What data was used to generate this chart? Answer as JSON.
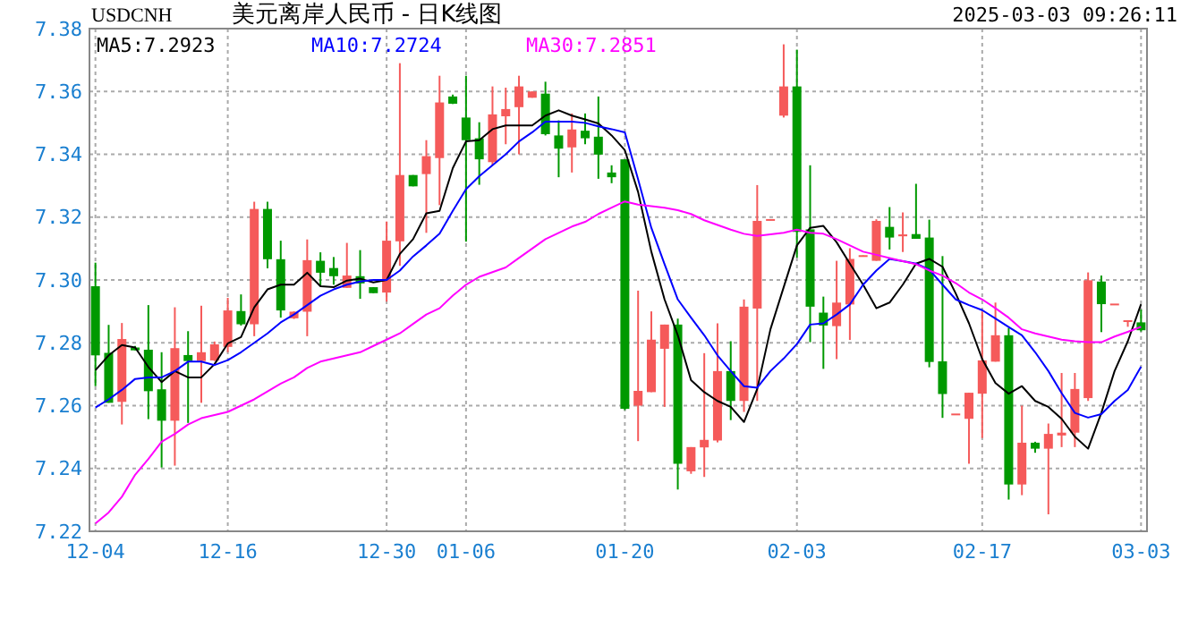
{
  "chart_data": {
    "type": "candlestick",
    "title": "美元离岸人民币 - 日K线图",
    "subtitle": "USDCNH",
    "annotations": [
      "2025-03-03 09:26:11"
    ],
    "categories": [
      "12-04",
      null,
      null,
      null,
      null,
      null,
      null,
      null,
      null,
      null,
      "12-16",
      null,
      null,
      null,
      null,
      null,
      null,
      null,
      null,
      null,
      null,
      null,
      "12-30",
      null,
      null,
      null,
      null,
      null,
      "01-06",
      null,
      null,
      null,
      null,
      null,
      null,
      null,
      null,
      null,
      null,
      null,
      "01-20",
      null,
      null,
      null,
      null,
      null,
      null,
      null,
      null,
      null,
      null,
      null,
      null,
      "02-03",
      null,
      null,
      null,
      null,
      null,
      null,
      null,
      null,
      null,
      null,
      null,
      null,
      null,
      "02-17",
      null,
      null,
      null,
      null,
      null,
      null,
      null,
      null,
      null,
      null,
      null,
      "03-03"
    ],
    "ohlc": [
      [
        7.298,
        7.3055,
        7.2662,
        7.276
      ],
      [
        7.2768,
        7.2857,
        7.2609,
        7.2609
      ],
      [
        7.2612,
        7.2863,
        7.254,
        7.2812
      ],
      [
        7.2785,
        7.279,
        7.2776,
        7.2776
      ],
      [
        7.2778,
        7.292,
        7.2557,
        7.2646
      ],
      [
        7.2652,
        7.277,
        7.2403,
        7.2552
      ],
      [
        7.2552,
        7.2913,
        7.2409,
        7.2783
      ],
      [
        7.2761,
        7.2837,
        7.2545,
        7.2742
      ],
      [
        7.2742,
        7.2918,
        7.2609,
        7.277
      ],
      [
        7.2744,
        7.2804,
        7.2742,
        7.2795
      ],
      [
        7.2787,
        7.2943,
        7.277,
        7.2903
      ],
      [
        7.2901,
        7.2954,
        7.2855,
        7.2859
      ],
      [
        7.2859,
        7.3249,
        7.2821,
        7.3226
      ],
      [
        7.3226,
        7.3249,
        7.3037,
        7.3066
      ],
      [
        7.3066,
        7.3125,
        7.288,
        7.2903
      ],
      [
        7.2878,
        7.29,
        7.2876,
        7.2899
      ],
      [
        7.2899,
        7.3129,
        7.2821,
        7.3063
      ],
      [
        7.3061,
        7.3088,
        7.2983,
        7.3023
      ],
      [
        7.3038,
        7.3073,
        7.2985,
        7.3012
      ],
      [
        7.2975,
        7.3118,
        7.2975,
        7.3014
      ],
      [
        7.3012,
        7.3095,
        7.294,
        7.2989
      ],
      [
        7.2977,
        7.2977,
        7.2958,
        7.2958
      ],
      [
        7.296,
        7.3186,
        7.2931,
        7.3125
      ],
      [
        7.3123,
        7.369,
        7.3045,
        7.3334
      ],
      [
        7.3334,
        7.3334,
        7.3298,
        7.3298
      ],
      [
        7.3337,
        7.3445,
        7.315,
        7.3394
      ],
      [
        7.3388,
        7.365,
        7.3238,
        7.3565
      ],
      [
        7.3584,
        7.359,
        7.356,
        7.3561
      ],
      [
        7.3517,
        7.365,
        7.3122,
        7.3445
      ],
      [
        7.3451,
        7.3502,
        7.3303,
        7.3384
      ],
      [
        7.3375,
        7.3616,
        7.3365,
        7.3527
      ],
      [
        7.3521,
        7.3612,
        7.3432,
        7.3544
      ],
      [
        7.355,
        7.365,
        7.34,
        7.3616
      ],
      [
        7.358,
        7.36,
        7.358,
        7.36
      ],
      [
        7.3593,
        7.3631,
        7.346,
        7.3464
      ],
      [
        7.346,
        7.3508,
        7.3327,
        7.3418
      ],
      [
        7.3422,
        7.353,
        7.3342,
        7.3479
      ],
      [
        7.3475,
        7.353,
        7.3432,
        7.3451
      ],
      [
        7.3456,
        7.3584,
        7.3322,
        7.3399
      ],
      [
        7.3342,
        7.3365,
        7.3308,
        7.3327
      ],
      [
        7.3384,
        7.3384,
        7.2586,
        7.259
      ],
      [
        7.26,
        7.2966,
        7.2487,
        7.2647
      ],
      [
        7.2643,
        7.29,
        7.2643,
        7.281
      ],
      [
        7.2781,
        7.2858,
        7.2596,
        7.2858
      ],
      [
        7.2858,
        7.2877,
        7.2333,
        7.2415
      ],
      [
        7.2391,
        7.2468,
        7.2383,
        7.2468
      ],
      [
        7.2467,
        7.2767,
        7.2373,
        7.2491
      ],
      [
        7.2489,
        7.2862,
        7.2483,
        7.271
      ],
      [
        7.271,
        7.2805,
        7.2554,
        7.2615
      ],
      [
        7.2615,
        7.2938,
        7.258,
        7.2915
      ],
      [
        7.2909,
        7.3302,
        7.2615,
        7.3188
      ],
      [
        7.319,
        7.3192,
        7.319,
        7.3192
      ],
      [
        7.3523,
        7.375,
        7.3517,
        7.3616
      ],
      [
        7.3616,
        7.3733,
        7.3071,
        7.3153
      ],
      [
        7.3161,
        7.3365,
        7.2802,
        7.2915
      ],
      [
        7.2896,
        7.2947,
        7.2717,
        7.2855
      ],
      [
        7.2853,
        7.3061,
        7.2748,
        7.2928
      ],
      [
        7.2922,
        7.3101,
        7.2809,
        7.3067
      ],
      [
        7.3074,
        7.3078,
        7.3074,
        7.3078
      ],
      [
        7.3061,
        7.3193,
        7.3061,
        7.3188
      ],
      [
        7.3169,
        7.3232,
        7.3097,
        7.3135
      ],
      [
        7.3139,
        7.3215,
        7.3089,
        7.3145
      ],
      [
        7.3146,
        7.3306,
        7.3131,
        7.3131
      ],
      [
        7.3135,
        7.3192,
        7.2722,
        7.2739
      ],
      [
        7.2741,
        7.3076,
        7.2561,
        7.2637
      ],
      [
        7.2571,
        7.2573,
        7.2571,
        7.2573
      ],
      [
        7.2558,
        7.2641,
        7.2415,
        7.2641
      ],
      [
        7.2638,
        7.29,
        7.2497,
        7.2744
      ],
      [
        7.274,
        7.2928,
        7.274,
        7.2824
      ],
      [
        7.2824,
        7.2847,
        7.2301,
        7.2349
      ],
      [
        7.2349,
        7.26,
        7.2315,
        7.2482
      ],
      [
        7.2482,
        7.2485,
        7.245,
        7.2463
      ],
      [
        7.2463,
        7.2543,
        7.2254,
        7.251
      ],
      [
        7.2505,
        7.2704,
        7.2468,
        7.2514
      ],
      [
        7.2514,
        7.2704,
        7.2468,
        7.2653
      ],
      [
        7.2624,
        7.3024,
        7.2615,
        7.2999
      ],
      [
        7.2995,
        7.3014,
        7.2834,
        7.2923
      ],
      [
        7.2921,
        7.2923,
        7.2921,
        7.2923
      ],
      [
        7.2868,
        7.287,
        7.2851,
        7.287
      ],
      [
        7.2865,
        7.2906,
        7.2836,
        7.284
      ]
    ],
    "colors": [
      "#009900",
      "#009900",
      "#f55a5a",
      "#009900",
      "#009900",
      "#009900",
      "#f55a5a",
      "#009900",
      "#f55a5a",
      "#f55a5a",
      "#f55a5a",
      "#009900",
      "#f55a5a",
      "#009900",
      "#009900",
      "#f55a5a",
      "#f55a5a",
      "#009900",
      "#009900",
      "#f55a5a",
      "#009900",
      "#009900",
      "#f55a5a",
      "#f55a5a",
      "#009900",
      "#f55a5a",
      "#f55a5a",
      "#009900",
      "#009900",
      "#009900",
      "#f55a5a",
      "#f55a5a",
      "#f55a5a",
      "#f55a5a",
      "#009900",
      "#009900",
      "#f55a5a",
      "#009900",
      "#009900",
      "#009900",
      "#009900",
      "#f55a5a",
      "#f55a5a",
      "#f55a5a",
      "#009900",
      "#f55a5a",
      "#f55a5a",
      "#f55a5a",
      "#009900",
      "#f55a5a",
      "#f55a5a",
      "#f55a5a",
      "#f55a5a",
      "#009900",
      "#009900",
      "#009900",
      "#f55a5a",
      "#f55a5a",
      "#f55a5a",
      "#f55a5a",
      "#009900",
      "#f55a5a",
      "#009900",
      "#009900",
      "#009900",
      "#f55a5a",
      "#f55a5a",
      "#f55a5a",
      "#f55a5a",
      "#009900",
      "#f55a5a",
      "#009900",
      "#f55a5a",
      "#f55a5a",
      "#f55a5a",
      "#f55a5a",
      "#009900",
      "#f55a5a",
      "#f55a5a",
      "#009900"
    ],
    "series": [
      {
        "type": "line",
        "name": "MA5:7.2923",
        "color": "#000000",
        "values": [
          7.2713,
          7.276,
          7.2793,
          7.2785,
          7.2723,
          7.2675,
          7.271,
          7.269,
          7.269,
          7.2732,
          7.2798,
          7.2818,
          7.2913,
          7.297,
          7.2985,
          7.2985,
          7.3023,
          7.298,
          7.2977,
          7.2998,
          7.3004,
          7.2992,
          7.3,
          7.3083,
          7.313,
          7.3212,
          7.322,
          7.3356,
          7.3441,
          7.3445,
          7.348,
          7.3492,
          7.3492,
          7.3492,
          7.3523,
          7.354,
          7.3523,
          7.3511,
          7.3498,
          7.346,
          7.3413,
          7.328,
          7.309,
          7.2938,
          7.2824,
          7.2681,
          7.2643,
          7.2615,
          7.2596,
          7.2548,
          7.2653,
          7.2843,
          7.2977,
          7.311,
          7.3166,
          7.3172,
          7.312,
          7.3052,
          7.2985,
          7.291,
          7.2928,
          7.2985,
          7.3052,
          7.3067,
          7.3042,
          7.2957,
          7.2862,
          7.2748,
          7.2672,
          7.2638,
          7.2662,
          7.2615,
          7.2596,
          7.2558,
          7.2501,
          7.2463,
          7.2577,
          7.271,
          7.2805,
          7.2923
        ]
      },
      {
        "type": "line",
        "name": "MA10:7.2724",
        "color": "#0000ff",
        "values": [
          7.2594,
          7.262,
          7.265,
          7.2685,
          7.269,
          7.269,
          7.271,
          7.274,
          7.274,
          7.2729,
          7.2745,
          7.277,
          7.28,
          7.283,
          7.2865,
          7.289,
          7.292,
          7.295,
          7.297,
          7.2985,
          7.2995,
          7.3,
          7.3,
          7.303,
          7.3075,
          7.311,
          7.3147,
          7.322,
          7.3289,
          7.333,
          7.3365,
          7.34,
          7.3441,
          7.347,
          7.3504,
          7.3504,
          7.3504,
          7.35,
          7.3489,
          7.348,
          7.347,
          7.332,
          7.3166,
          7.305,
          7.2938,
          7.288,
          7.2824,
          7.276,
          7.271,
          7.2662,
          7.2657,
          7.271,
          7.275,
          7.2796,
          7.2858,
          7.2862,
          7.289,
          7.2922,
          7.2985,
          7.303,
          7.3067,
          7.306,
          7.3052,
          7.3033,
          7.2985,
          7.2938,
          7.292,
          7.2904,
          7.2877,
          7.285,
          7.2824,
          7.277,
          7.271,
          7.264,
          7.2577,
          7.2562,
          7.2573,
          7.2615,
          7.265,
          7.2724
        ]
      },
      {
        "type": "line",
        "name": "MA30:7.2851",
        "color": "#ff00ff",
        "values": [
          7.2225,
          7.226,
          7.231,
          7.238,
          7.243,
          7.2485,
          7.251,
          7.254,
          7.256,
          7.257,
          7.258,
          7.26,
          7.262,
          7.2645,
          7.267,
          7.269,
          7.272,
          7.274,
          7.275,
          7.276,
          7.277,
          7.279,
          7.281,
          7.283,
          7.286,
          7.289,
          7.291,
          7.295,
          7.2985,
          7.301,
          7.3025,
          7.304,
          7.307,
          7.31,
          7.313,
          7.315,
          7.317,
          7.3185,
          7.321,
          7.323,
          7.325,
          7.324,
          7.3235,
          7.323,
          7.3222,
          7.321,
          7.319,
          7.3175,
          7.316,
          7.3147,
          7.314,
          7.3145,
          7.315,
          7.316,
          7.315,
          7.3147,
          7.313,
          7.311,
          7.309,
          7.308,
          7.307,
          7.306,
          7.305,
          7.303,
          7.3014,
          7.299,
          7.296,
          7.2938,
          7.291,
          7.288,
          7.2843,
          7.283,
          7.282,
          7.281,
          7.2805,
          7.2802,
          7.2802,
          7.282,
          7.2835,
          7.2851
        ]
      }
    ],
    "ylim": [
      7.22,
      7.38
    ],
    "yticks": [
      7.22,
      7.24,
      7.26,
      7.28,
      {
        "value": 7.3,
        "label": "7.30"
      },
      7.32,
      7.34,
      7.36,
      7.38
    ],
    "grid": true,
    "legend": "top left"
  }
}
